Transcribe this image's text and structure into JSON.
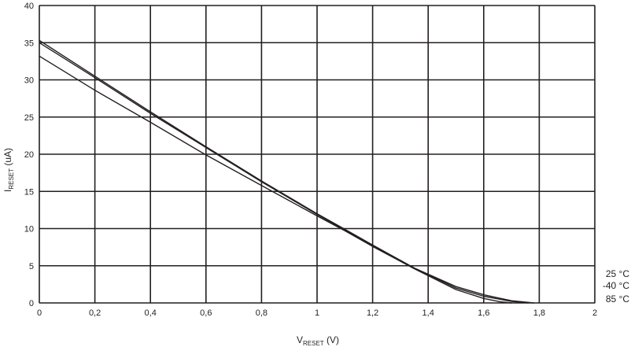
{
  "chart_data": {
    "type": "line",
    "xlabel": {
      "main": "V",
      "sub": "RESET",
      "tail": " (V)"
    },
    "ylabel": {
      "main": "I",
      "sub": "RESET",
      "tail": " (uA)"
    },
    "xlim": [
      0,
      2
    ],
    "ylim": [
      0,
      40
    ],
    "x_ticks": [
      0,
      0.2,
      0.4,
      0.6,
      0.8,
      1,
      1.2,
      1.4,
      1.6,
      1.8,
      2
    ],
    "x_tick_labels": [
      "0",
      "0,2",
      "0,4",
      "0,6",
      "0,8",
      "1",
      "1,2",
      "1,4",
      "1,6",
      "1,8",
      "2"
    ],
    "y_ticks": [
      0,
      5,
      10,
      15,
      20,
      25,
      30,
      35,
      40
    ],
    "y_tick_labels": [
      "0",
      "5",
      "10",
      "15",
      "20",
      "25",
      "30",
      "35",
      "40"
    ],
    "grid": true,
    "legend_position": "right, bottom",
    "series": [
      {
        "name": "25 °C",
        "color": "#231f20",
        "x": [
          0,
          0.2,
          0.4,
          0.6,
          0.8,
          1.0,
          1.1,
          1.2,
          1.35,
          1.5,
          1.6,
          1.7,
          1.76
        ],
        "y": [
          35.3,
          30.5,
          25.7,
          21.0,
          16.4,
          12.0,
          9.9,
          7.8,
          4.7,
          2.0,
          0.9,
          0.2,
          0
        ]
      },
      {
        "name": "-40 °C",
        "color": "#231f20",
        "x": [
          0,
          0.2,
          0.4,
          0.6,
          0.8,
          1.0,
          1.1,
          1.2,
          1.35,
          1.5,
          1.6,
          1.7,
          1.78
        ],
        "y": [
          35.0,
          30.3,
          25.5,
          20.9,
          16.3,
          11.9,
          9.8,
          7.7,
          4.7,
          2.2,
          1.1,
          0.3,
          0
        ]
      },
      {
        "name": "85 °C",
        "color": "#231f20",
        "x": [
          0,
          0.2,
          0.4,
          0.6,
          0.8,
          1.0,
          1.1,
          1.2,
          1.35,
          1.5,
          1.6,
          1.66,
          1.7
        ],
        "y": [
          33.2,
          28.6,
          24.3,
          19.9,
          15.8,
          11.7,
          9.7,
          7.6,
          4.6,
          1.8,
          0.6,
          0.15,
          0
        ]
      }
    ]
  }
}
